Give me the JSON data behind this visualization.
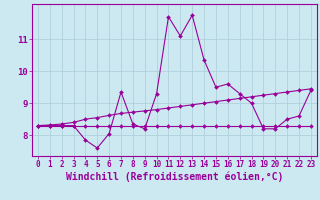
{
  "x_values": [
    0,
    1,
    2,
    3,
    4,
    5,
    6,
    7,
    8,
    9,
    10,
    11,
    12,
    13,
    14,
    15,
    16,
    17,
    18,
    19,
    20,
    21,
    22,
    23
  ],
  "line1_y": [
    8.3,
    8.3,
    8.3,
    8.3,
    7.85,
    7.6,
    8.05,
    9.35,
    8.35,
    8.2,
    9.3,
    11.7,
    11.1,
    11.75,
    10.35,
    9.5,
    9.6,
    9.3,
    9.0,
    8.2,
    8.2,
    8.5,
    8.6,
    9.4
  ],
  "line2_y": [
    8.3,
    8.32,
    8.35,
    8.4,
    8.5,
    8.55,
    8.62,
    8.68,
    8.72,
    8.76,
    8.8,
    8.85,
    8.9,
    8.95,
    9.0,
    9.05,
    9.1,
    9.15,
    9.2,
    9.25,
    9.3,
    9.35,
    9.4,
    9.45
  ],
  "line3_y": [
    8.3,
    8.3,
    8.3,
    8.3,
    8.3,
    8.3,
    8.3,
    8.3,
    8.3,
    8.3,
    8.3,
    8.3,
    8.3,
    8.3,
    8.3,
    8.3,
    8.3,
    8.3,
    8.3,
    8.3,
    8.3,
    8.3,
    8.3,
    8.3
  ],
  "line_color": "#990099",
  "background_color": "#cce8f0",
  "grid_color": "#aaccd8",
  "ylabel_ticks": [
    8,
    9,
    10,
    11
  ],
  "xlabel_ticks": [
    0,
    1,
    2,
    3,
    4,
    5,
    6,
    7,
    8,
    9,
    10,
    11,
    12,
    13,
    14,
    15,
    16,
    17,
    18,
    19,
    20,
    21,
    22,
    23
  ],
  "xlabel": "Windchill (Refroidissement éolien,°C)",
  "ylim": [
    7.35,
    12.1
  ],
  "xlim": [
    -0.5,
    23.5
  ],
  "tick_fontsize": 5.5,
  "xlabel_fontsize": 7.0,
  "marker_size": 2.0,
  "line_width": 0.8
}
